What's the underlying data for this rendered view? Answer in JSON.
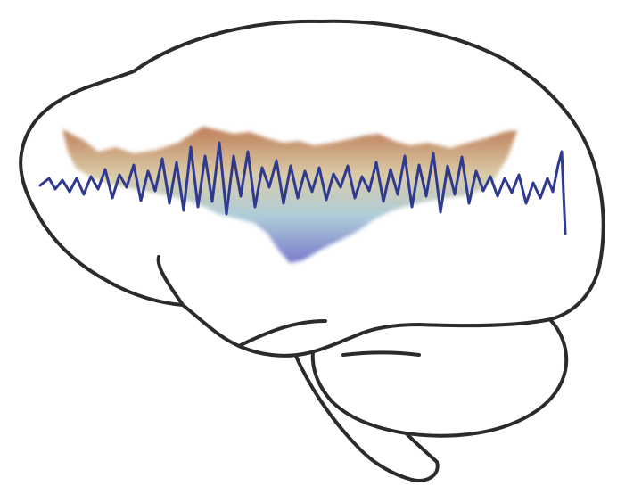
{
  "illustration": {
    "subject": "brain-side-view",
    "colors": {
      "outline": "#2b2b2b",
      "background": "#ffffff",
      "eeg_trace": "#2f3a8f",
      "heatmap_top": "#b8734a",
      "heatmap_middle": "#d8c7a0",
      "heatmap_lower": "#a9c9d6",
      "heatmap_bottom": "#6f70c9"
    }
  }
}
